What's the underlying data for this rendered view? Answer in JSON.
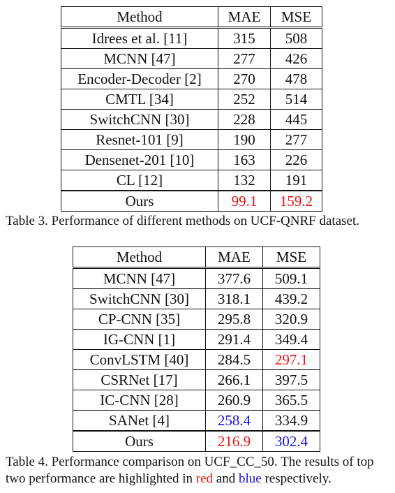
{
  "table3": {
    "header": {
      "method": "Method",
      "mae": "MAE",
      "mse": "MSE"
    },
    "rows": [
      {
        "method": "Idrees et al.  [11]",
        "mae": "315",
        "mse": "508"
      },
      {
        "method": "MCNN [47]",
        "mae": "277",
        "mse": "426"
      },
      {
        "method": "Encoder-Decoder [2]",
        "mae": "270",
        "mse": "478"
      },
      {
        "method": "CMTL [34]",
        "mae": "252",
        "mse": "514"
      },
      {
        "method": "SwitchCNN [30]",
        "mae": "228",
        "mse": "445"
      },
      {
        "method": "Resnet-101 [9]",
        "mae": "190",
        "mse": "277"
      },
      {
        "method": "Densenet-201 [10]",
        "mae": "163",
        "mse": "226"
      },
      {
        "method": "CL [12]",
        "mae": "132",
        "mse": "191"
      },
      {
        "method": "Ours",
        "mae": "99.1",
        "mse": "159.2"
      }
    ],
    "caption": "Table 3. Performance of different methods on UCF-QNRF dataset."
  },
  "table4": {
    "header": {
      "method": "Method",
      "mae": "MAE",
      "mse": "MSE"
    },
    "rows": [
      {
        "method": "MCNN [47]",
        "mae": "377.6",
        "mse": "509.1"
      },
      {
        "method": "SwitchCNN [30]",
        "mae": "318.1",
        "mse": "439.2"
      },
      {
        "method": "CP-CNN [35]",
        "mae": "295.8",
        "mse": "320.9"
      },
      {
        "method": "IG-CNN [1]",
        "mae": "291.4",
        "mse": "349.4"
      },
      {
        "method": "ConvLSTM [40]",
        "mae": "284.5",
        "mse": "297.1"
      },
      {
        "method": "CSRNet [17]",
        "mae": "266.1",
        "mse": "397.5"
      },
      {
        "method": "IC-CNN [28]",
        "mae": "260.9",
        "mse": "365.5"
      },
      {
        "method": "SANet [4]",
        "mae": "258.4",
        "mse": "334.9"
      },
      {
        "method": "Ours",
        "mae": "216.9",
        "mse": "302.4"
      }
    ],
    "caption_part1": "Table 4. Performance comparison on UCF_CC_50.  The results of top two performance are highlighted in ",
    "caption_red_word": "red",
    "caption_part2": " and ",
    "caption_blue_word": "blue",
    "caption_part3": " respectively."
  },
  "colors": {
    "highlight_red": "#ee1111",
    "highlight_blue": "#1111dd"
  }
}
